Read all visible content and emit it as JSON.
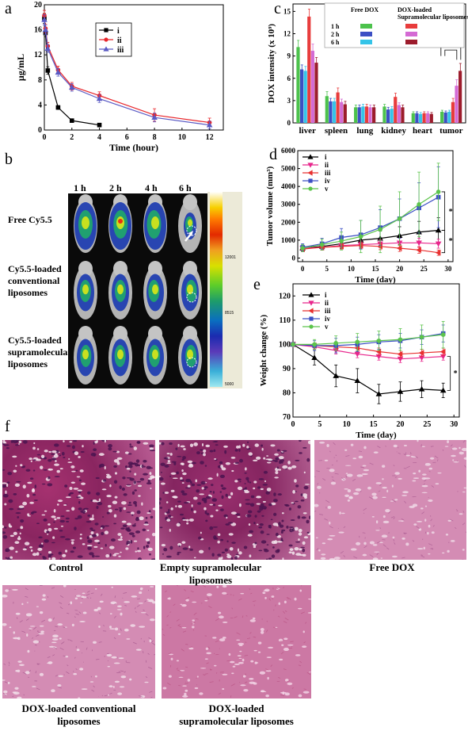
{
  "panels": {
    "a": "a",
    "b": "b",
    "c": "c",
    "d": "d",
    "e": "e",
    "f": "f"
  },
  "chart_data": [
    {
      "id": "a",
      "type": "line",
      "xlabel": "Time (hour)",
      "ylabel": "μg/mL",
      "xlim": [
        0,
        13
      ],
      "ylim": [
        0,
        20
      ],
      "xticks": [
        0,
        2,
        4,
        6,
        8,
        10,
        12
      ],
      "yticks": [
        0,
        4,
        8,
        12,
        16,
        20
      ],
      "legend_position": "top-center",
      "series": [
        {
          "name": "i",
          "color": "#000000",
          "marker": "square",
          "x": [
            0,
            0.083,
            0.25,
            1,
            2,
            4
          ],
          "y": [
            17.8,
            15.5,
            9.5,
            3.6,
            1.5,
            0.8
          ],
          "err": [
            0.8,
            0.6,
            0.6,
            0.3,
            0.2,
            0.1
          ]
        },
        {
          "name": "ii",
          "color": "#e8262b",
          "marker": "circle",
          "x": [
            0,
            0.083,
            0.25,
            1,
            2,
            4,
            8,
            12
          ],
          "y": [
            18.3,
            16.2,
            13.4,
            9.6,
            7.0,
            5.5,
            2.4,
            1.2
          ],
          "err": [
            0.8,
            0.7,
            0.6,
            0.6,
            0.6,
            0.6,
            1.0,
            0.7
          ]
        },
        {
          "name": "iii",
          "color": "#5a5ac4",
          "marker": "triangle",
          "x": [
            0,
            0.083,
            0.25,
            1,
            2,
            4,
            8,
            12
          ],
          "y": [
            17.6,
            16.0,
            13.0,
            9.2,
            6.8,
            5.0,
            2.0,
            0.8
          ],
          "err": [
            0.8,
            0.7,
            0.6,
            0.6,
            0.6,
            0.6,
            0.7,
            0.6
          ]
        }
      ]
    },
    {
      "id": "c",
      "type": "bar",
      "ylabel": "DOX intensity (x 10⁹)",
      "ylim": [
        0,
        16
      ],
      "yticks": [
        0,
        3,
        6,
        9,
        12,
        15
      ],
      "categories": [
        "liver",
        "spleen",
        "lung",
        "kidney",
        "heart",
        "tumor"
      ],
      "legend": {
        "col1": "Free DOX",
        "col2_line1": "DOX-loaded",
        "col2_line2": "Supramolecular liposomes",
        "rows": [
          "1 h",
          "2 h",
          "6 h"
        ]
      },
      "significance": "*",
      "series": [
        {
          "name": "Free DOX 1 h",
          "color": "#4cc24c",
          "values": [
            10.2,
            3.6,
            2.1,
            2.2,
            1.3,
            1.5
          ],
          "err": [
            0.9,
            0.6,
            0.3,
            0.3,
            0.2,
            0.2
          ]
        },
        {
          "name": "Free DOX 2 h",
          "color": "#3c4fc4",
          "values": [
            7.2,
            2.9,
            2.1,
            1.8,
            1.3,
            1.4
          ],
          "err": [
            0.6,
            0.4,
            0.3,
            0.3,
            0.2,
            0.2
          ]
        },
        {
          "name": "Free DOX 6 h",
          "color": "#35c4e8",
          "values": [
            7.0,
            2.9,
            2.2,
            1.9,
            1.2,
            1.5
          ],
          "err": [
            0.6,
            0.4,
            0.3,
            0.3,
            0.2,
            0.2
          ]
        },
        {
          "name": "Liposomes 1 h",
          "color": "#e83c3c",
          "values": [
            14.3,
            4.1,
            2.2,
            3.5,
            1.3,
            2.8
          ],
          "err": [
            1.0,
            0.6,
            0.3,
            0.5,
            0.2,
            0.5
          ]
        },
        {
          "name": "Liposomes 2 h",
          "color": "#d46ad4",
          "values": [
            9.7,
            2.8,
            2.1,
            2.4,
            1.3,
            5.0
          ],
          "err": [
            0.9,
            0.4,
            0.3,
            0.3,
            0.2,
            0.8
          ]
        },
        {
          "name": "Liposomes 6 h",
          "color": "#9c1c2c",
          "values": [
            8.1,
            2.5,
            2.1,
            2.1,
            1.2,
            7.0
          ],
          "err": [
            0.7,
            0.4,
            0.3,
            0.3,
            0.2,
            1.0
          ]
        }
      ]
    },
    {
      "id": "d",
      "type": "line",
      "xlabel": "Time (day)",
      "ylabel": "Tumor volume (mm³)",
      "xlim": [
        -1,
        31
      ],
      "ylim": [
        -200,
        6000
      ],
      "xticks": [
        0,
        5,
        10,
        15,
        20,
        25,
        30
      ],
      "yticks": [
        0,
        1000,
        2000,
        3000,
        4000,
        5000,
        6000
      ],
      "significance": [
        "*",
        "*"
      ],
      "series": [
        {
          "name": "i",
          "color": "#000000",
          "marker": "triangle",
          "x": [
            0,
            4,
            8,
            12,
            16,
            20,
            24,
            28
          ],
          "y": [
            550,
            650,
            800,
            1000,
            1100,
            1250,
            1450,
            1550
          ],
          "err": [
            150,
            200,
            250,
            400,
            400,
            500,
            600,
            700
          ]
        },
        {
          "name": "ii",
          "color": "#e8268c",
          "marker": "triangle-down",
          "x": [
            0,
            4,
            8,
            12,
            16,
            20,
            24,
            28
          ],
          "y": [
            550,
            600,
            700,
            750,
            800,
            850,
            850,
            800
          ],
          "err": [
            120,
            150,
            180,
            200,
            220,
            250,
            250,
            250
          ]
        },
        {
          "name": "iii",
          "color": "#e83030",
          "marker": "triangle-left",
          "x": [
            0,
            4,
            8,
            12,
            16,
            20,
            24,
            28
          ],
          "y": [
            500,
            600,
            650,
            700,
            650,
            550,
            450,
            300
          ],
          "err": [
            120,
            150,
            150,
            180,
            180,
            180,
            180,
            150
          ]
        },
        {
          "name": "iv",
          "color": "#3c4fc4",
          "marker": "square",
          "x": [
            0,
            4,
            8,
            12,
            16,
            20,
            24,
            28
          ],
          "y": [
            600,
            800,
            1150,
            1300,
            1700,
            2200,
            2800,
            3400
          ],
          "err": [
            200,
            300,
            500,
            800,
            1000,
            1100,
            1400,
            1700
          ]
        },
        {
          "name": "v",
          "color": "#5cc44c",
          "marker": "circle",
          "x": [
            0,
            4,
            8,
            12,
            16,
            20,
            24,
            28
          ],
          "y": [
            550,
            750,
            950,
            1200,
            1600,
            2200,
            3000,
            3700
          ],
          "err": [
            200,
            300,
            500,
            900,
            1300,
            1500,
            1800,
            1600
          ]
        }
      ]
    },
    {
      "id": "e",
      "type": "line",
      "xlabel": "Time (day)",
      "ylabel": "Weight change (%)",
      "xlim": [
        0,
        31
      ],
      "ylim": [
        70,
        125
      ],
      "xticks": [
        0,
        5,
        10,
        15,
        20,
        25,
        30
      ],
      "yticks": [
        70,
        80,
        90,
        100,
        110,
        120
      ],
      "significance": "*",
      "series": [
        {
          "name": "i",
          "color": "#000000",
          "marker": "triangle",
          "x": [
            0,
            4,
            8,
            12,
            16,
            20,
            24,
            28
          ],
          "y": [
            100,
            94.5,
            87,
            85,
            79.5,
            80.5,
            81.5,
            81
          ],
          "err": [
            0.5,
            3,
            4.5,
            5,
            4,
            4,
            3.5,
            3
          ]
        },
        {
          "name": "ii",
          "color": "#e8268c",
          "marker": "triangle-down",
          "x": [
            0,
            4,
            8,
            12,
            16,
            20,
            24,
            28
          ],
          "y": [
            100,
            99,
            97.5,
            96,
            95,
            94,
            94.5,
            95
          ],
          "err": [
            0.5,
            1,
            1.5,
            1.5,
            1.5,
            1.5,
            1.5,
            1.5
          ]
        },
        {
          "name": "iii",
          "color": "#e83030",
          "marker": "triangle-left",
          "x": [
            0,
            4,
            8,
            12,
            16,
            20,
            24,
            28
          ],
          "y": [
            100,
            99.5,
            99,
            98.5,
            97,
            96,
            96.5,
            97
          ],
          "err": [
            0.5,
            1,
            1.5,
            1.5,
            1.5,
            1.5,
            1.5,
            1.5
          ]
        },
        {
          "name": "iv",
          "color": "#3c4fc4",
          "marker": "square",
          "x": [
            0,
            4,
            8,
            12,
            16,
            20,
            24,
            28
          ],
          "y": [
            100,
            99.5,
            99.5,
            100,
            101,
            101.5,
            103,
            104.5
          ],
          "err": [
            0.5,
            2,
            3,
            3,
            3,
            3,
            3,
            3.5
          ]
        },
        {
          "name": "v",
          "color": "#5cc44c",
          "marker": "circle",
          "x": [
            0,
            4,
            8,
            12,
            16,
            20,
            24,
            28
          ],
          "y": [
            100,
            100,
            100.5,
            101,
            101.5,
            102,
            103,
            104
          ],
          "err": [
            0.5,
            2,
            3,
            3.5,
            4,
            4.5,
            5,
            5.5
          ]
        }
      ]
    }
  ],
  "imaging": {
    "times": [
      "1 h",
      "2 h",
      "4 h",
      "6 h"
    ],
    "rows": [
      "Free  Cy5.5",
      "Cy5.5-loaded\nconventional\nliposomes",
      "Cy5.5-loaded\nsupramolecular\nliposomes"
    ],
    "scale_labels": [
      "12001",
      "8515",
      "5000"
    ]
  },
  "histology": {
    "captions": [
      "Control",
      "Empty supramolecular\nliposomes",
      "Free DOX",
      "DOX-loaded conventional\nliposomes",
      "DOX-loaded\nsupramolecular liposomes"
    ]
  }
}
